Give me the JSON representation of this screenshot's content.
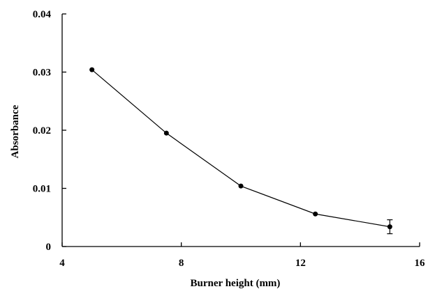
{
  "chart_data": {
    "type": "scatter",
    "xlabel": "Burner height (mm)",
    "ylabel": "Absorbance",
    "xlim": [
      4,
      16
    ],
    "ylim": [
      0,
      0.04
    ],
    "x_ticks": [
      "4",
      "8",
      "12",
      "16"
    ],
    "y_ticks": [
      "0",
      "0.01",
      "0.02",
      "0.03",
      "0.04"
    ],
    "grid": false,
    "series": [
      {
        "x": [
          5,
          7.5,
          10,
          12.5,
          15
        ],
        "y": [
          0.0304,
          0.0195,
          0.0104,
          0.0056,
          0.0034
        ],
        "error": [
          0,
          0,
          0,
          0,
          0.0012
        ]
      }
    ]
  }
}
